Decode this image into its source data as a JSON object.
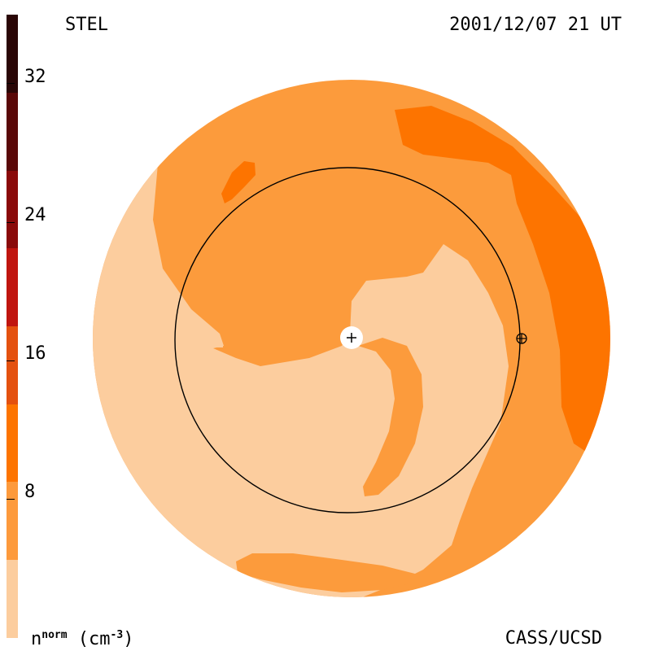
{
  "header": {
    "left_label": "STEL",
    "right_label": "2001/12/07 21 UT"
  },
  "footer": {
    "credit": "CASS/UCSD",
    "unit_base": "n",
    "unit_sup": "norm",
    "unit_paren_open": " (cm",
    "unit_exp": "-3",
    "unit_paren_close": ")"
  },
  "colorbar": {
    "tick_labels": [
      "32",
      "24",
      "16",
      "8"
    ],
    "tick_values": [
      32,
      24,
      16,
      8
    ],
    "colors": [
      "#fccd9e",
      "#fd9a3c",
      "#fd7400",
      "#e4510f",
      "#c0150f",
      "#8a0a0a",
      "#5a0808",
      "#2a0606"
    ]
  },
  "map": {
    "colors": {
      "lightest": "#fccd9e",
      "light": "#fc9b3c",
      "medium": "#fd7400"
    },
    "sun_marker_icon": "plus-icon",
    "earth_marker_icon": "earth-symbol-icon"
  }
}
